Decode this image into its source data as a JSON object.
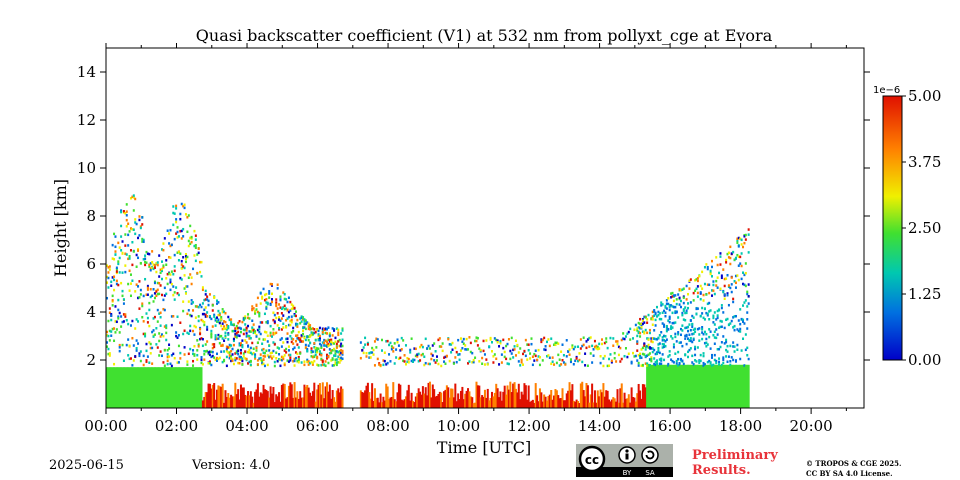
{
  "chart_data": {
    "type": "heatmap",
    "title": "Quasi backscatter coefficient (V1) at 532 nm from pollyxt_cge at Evora",
    "xlabel": "Time [UTC]",
    "ylabel": "Height [km]",
    "x_ticks": [
      "00:00",
      "02:00",
      "04:00",
      "06:00",
      "08:00",
      "10:00",
      "12:00",
      "14:00",
      "16:00",
      "18:00",
      "20:00"
    ],
    "x_tick_hours": [
      0,
      2,
      4,
      6,
      8,
      10,
      12,
      14,
      16,
      18,
      20
    ],
    "xlim_hours": [
      0,
      21.5
    ],
    "y_ticks": [
      "2",
      "4",
      "6",
      "8",
      "10",
      "12",
      "14"
    ],
    "y_tick_values": [
      2,
      4,
      6,
      8,
      10,
      12,
      14
    ],
    "ylim_km": [
      0,
      15
    ],
    "colorbar": {
      "multiplier": "1e−6",
      "tick_labels": [
        "0.00",
        "1.25",
        "2.50",
        "3.75",
        "5.00"
      ],
      "ticks": [
        0,
        1.25,
        2.5,
        3.75,
        5.0
      ],
      "range": [
        0,
        5
      ],
      "colormap": [
        "#0000c8",
        "#0070e0",
        "#00c8b0",
        "#40e030",
        "#f0f000",
        "#ff8000",
        "#e01000"
      ]
    },
    "data_gaps_hours": [
      [
        6.7,
        7.2
      ]
    ],
    "data_end_hour": 18.2
  },
  "footer": {
    "date": "2025-06-15",
    "version": "Version: 4.0",
    "preliminary_line1": "Preliminary",
    "preliminary_line2": "Results.",
    "copyright_line1": "© TROPOS & CGE 2025.",
    "copyright_line2": "CC BY SA 4.0 License.",
    "badge_by": "BY",
    "badge_sa": "SA"
  }
}
